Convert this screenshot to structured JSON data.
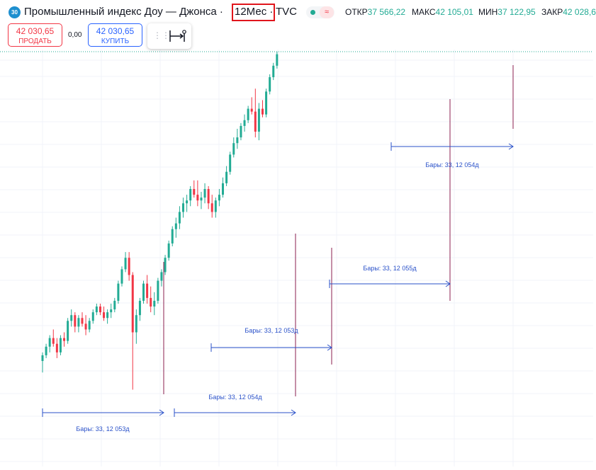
{
  "header": {
    "badge": "30",
    "title": "Промышленный индекс Доу — Джонса ·",
    "timeframe": "12Мес ·",
    "exchange": "TVC",
    "ohlc": [
      {
        "key": "ОТКР",
        "value": "37 566,22"
      },
      {
        "key": "МАКС",
        "value": "42 105,01"
      },
      {
        "key": "МИН",
        "value": "37 122,95"
      },
      {
        "key": "ЗАКР",
        "value": "42 028,6"
      }
    ]
  },
  "trade": {
    "sell_price": "42 030,65",
    "sell_label": "ПРОДАТЬ",
    "spread": "0,00",
    "buy_price": "42 030,65",
    "buy_label": "КУПИТЬ"
  },
  "colors": {
    "up": "#22ab94",
    "down": "#f23645",
    "measure": "#2a51c9",
    "marker": "#8b1f4f"
  },
  "icons": [
    "grip-icon",
    "date-range-tool-icon"
  ],
  "chart_data": {
    "type": "candlestick",
    "candles": [
      [
        0,
        0,
        3,
        -4,
        2
      ],
      [
        2,
        2,
        6,
        1,
        5
      ],
      [
        5,
        5,
        9,
        3,
        8
      ],
      [
        8,
        8,
        11,
        5,
        6
      ],
      [
        6,
        6,
        8,
        1,
        3
      ],
      [
        3,
        3,
        9,
        2,
        8
      ],
      [
        8,
        8,
        10,
        5,
        7
      ],
      [
        7,
        7,
        15,
        6,
        14
      ],
      [
        14,
        14,
        18,
        12,
        16
      ],
      [
        16,
        16,
        17,
        10,
        12
      ],
      [
        12,
        12,
        16,
        10,
        15
      ],
      [
        15,
        15,
        17,
        12,
        13
      ],
      [
        13,
        13,
        16,
        9,
        11
      ],
      [
        11,
        11,
        15,
        10,
        14
      ],
      [
        14,
        14,
        18,
        13,
        17
      ],
      [
        17,
        17,
        20,
        16,
        19
      ],
      [
        19,
        19,
        20,
        16,
        17
      ],
      [
        17,
        17,
        19,
        14,
        15
      ],
      [
        15,
        15,
        18,
        13,
        17
      ],
      [
        17,
        17,
        20,
        15,
        18
      ],
      [
        18,
        18,
        22,
        17,
        21
      ],
      [
        21,
        21,
        28,
        20,
        27
      ],
      [
        27,
        27,
        33,
        26,
        32
      ],
      [
        32,
        32,
        38,
        31,
        36
      ],
      [
        36,
        36,
        38,
        28,
        30
      ],
      [
        30,
        30,
        31,
        -10,
        10
      ],
      [
        10,
        10,
        18,
        6,
        16
      ],
      [
        16,
        16,
        22,
        14,
        21
      ],
      [
        21,
        21,
        28,
        20,
        27
      ],
      [
        27,
        27,
        30,
        20,
        22
      ],
      [
        22,
        22,
        26,
        17,
        19
      ],
      [
        19,
        19,
        24,
        16,
        21
      ],
      [
        21,
        21,
        29,
        20,
        28
      ],
      [
        28,
        28,
        32,
        26,
        31
      ],
      [
        31,
        31,
        37,
        30,
        36
      ],
      [
        36,
        36,
        42,
        35,
        41
      ],
      [
        41,
        41,
        47,
        40,
        46
      ],
      [
        46,
        46,
        50,
        43,
        48
      ],
      [
        48,
        48,
        54,
        46,
        52
      ],
      [
        52,
        52,
        57,
        50,
        55
      ],
      [
        55,
        55,
        58,
        52,
        56
      ],
      [
        56,
        56,
        61,
        54,
        60
      ],
      [
        60,
        60,
        63,
        57,
        58
      ],
      [
        58,
        58,
        63,
        54,
        56
      ],
      [
        56,
        56,
        59,
        53,
        57
      ],
      [
        57,
        57,
        62,
        55,
        60
      ],
      [
        60,
        60,
        61,
        53,
        55
      ],
      [
        55,
        55,
        58,
        50,
        52
      ],
      [
        52,
        52,
        57,
        50,
        56
      ],
      [
        56,
        56,
        60,
        54,
        58
      ],
      [
        58,
        58,
        64,
        57,
        62
      ],
      [
        62,
        62,
        68,
        61,
        66
      ],
      [
        66,
        66,
        73,
        65,
        72
      ],
      [
        72,
        72,
        78,
        71,
        76
      ],
      [
        76,
        76,
        81,
        74,
        78
      ],
      [
        78,
        78,
        83,
        77,
        82
      ],
      [
        82,
        82,
        86,
        80,
        84
      ],
      [
        84,
        84,
        89,
        83,
        88
      ],
      [
        88,
        88,
        92,
        86,
        87
      ],
      [
        87,
        87,
        95,
        78,
        80
      ],
      [
        80,
        80,
        90,
        77,
        88
      ],
      [
        88,
        88,
        91,
        85,
        86
      ],
      [
        86,
        86,
        95,
        85,
        94
      ],
      [
        94,
        94,
        100,
        93,
        99
      ],
      [
        99,
        99,
        104,
        98,
        103
      ],
      [
        103,
        103,
        108,
        102,
        107
      ]
    ],
    "measures": [
      {
        "label": "Бары: 33, 12 053д"
      },
      {
        "label": "Бары: 33, 12 054д"
      },
      {
        "label": "Бары: 33, 12 053д"
      },
      {
        "label": "Бары: 33, 12 055д"
      },
      {
        "label": "Бары: 33, 12 054д"
      }
    ]
  }
}
